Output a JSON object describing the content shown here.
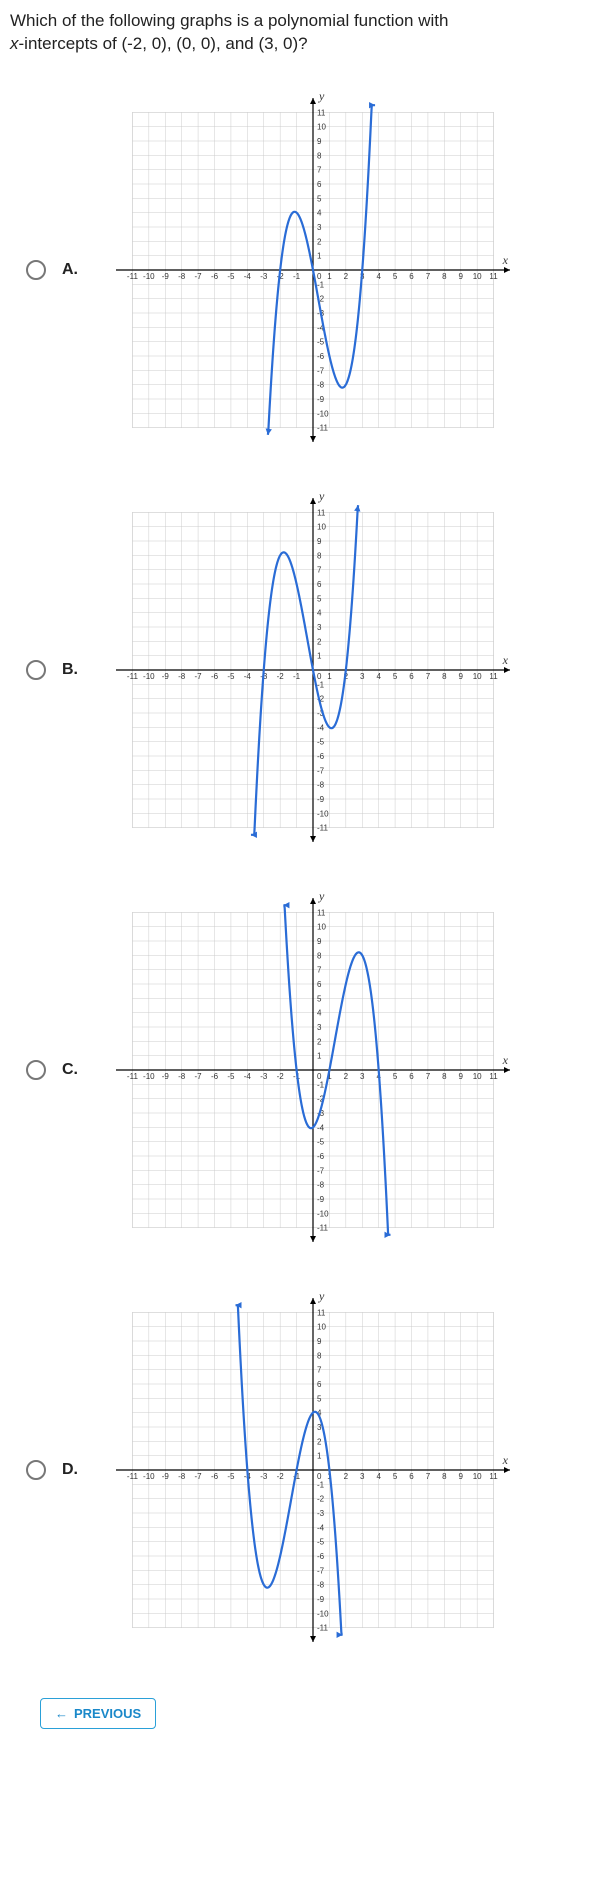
{
  "question": {
    "text_1": "Which of the following graphs is a polynomial function with",
    "text_2_prefix": "x",
    "text_2_rest": "-intercepts of (-2, 0), (0, 0), and (3, 0)?"
  },
  "axis_labels": {
    "x": "x",
    "y": "y"
  },
  "grid": {
    "xmin": -12,
    "xmax": 12,
    "ymin": -12,
    "ymax": 12,
    "xticks": [
      -11,
      -10,
      -9,
      -8,
      -7,
      -6,
      -5,
      -4,
      -3,
      -2,
      -1,
      1,
      2,
      3,
      4,
      5,
      6,
      7,
      8,
      9,
      10,
      11
    ],
    "yticks": [
      -11,
      -10,
      -9,
      -8,
      -7,
      -6,
      -5,
      -4,
      -3,
      -2,
      -1,
      1,
      2,
      3,
      4,
      5,
      6,
      7,
      8,
      9,
      10,
      11
    ],
    "grid_color": "#cccccc",
    "axis_color": "#000000"
  },
  "options": [
    {
      "label": "A.",
      "curve_color": "#2a6cd6",
      "x_intercepts": [
        -2,
        0,
        3
      ],
      "poly": {
        "coeffs": [
          1,
          -1,
          -6,
          0
        ],
        "scale": 1,
        "x_from": -2.75,
        "x_to": 3.78
      }
    },
    {
      "label": "B.",
      "curve_color": "#2a6cd6",
      "x_intercepts": [
        -3,
        0,
        2
      ],
      "poly": {
        "coeffs": [
          1,
          1,
          -6,
          0
        ],
        "scale": 1,
        "x_from": -3.78,
        "x_to": 2.75
      }
    },
    {
      "label": "C.",
      "curve_color": "#2a6cd6",
      "x_intercepts": [
        -1,
        1,
        4
      ],
      "poly": {
        "coeffs": [
          -1,
          4,
          1,
          -4
        ],
        "scale": 1,
        "x_from": -1.8,
        "x_to": 4.72
      }
    },
    {
      "label": "D.",
      "curve_color": "#2a6cd6",
      "x_intercepts": [
        -4,
        -1,
        1
      ],
      "poly": {
        "coeffs": [
          -1,
          -4,
          1,
          4
        ],
        "scale": 1,
        "x_from": -4.72,
        "x_to": 1.8
      }
    }
  ],
  "prev_button": {
    "label": "PREVIOUS",
    "arrow": "←"
  }
}
